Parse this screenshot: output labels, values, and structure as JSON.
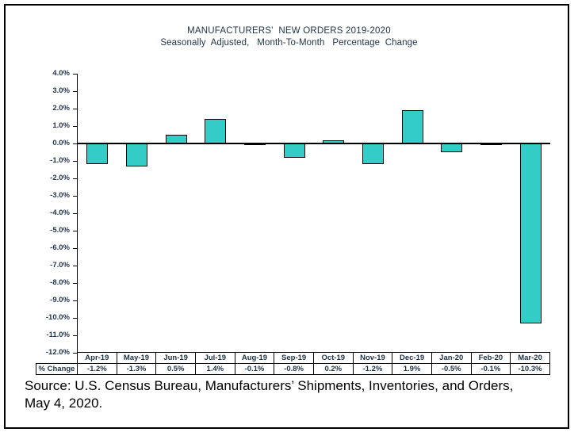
{
  "chart_data": {
    "type": "bar",
    "title": "MANUFACTURERS'  NEW ORDERS 2019-2020",
    "subtitle": "Seasonally  Adjusted,   Month-To-Month   Percentage  Change",
    "categories": [
      "Apr-19",
      "May-19",
      "Jun-19",
      "Jul-19",
      "Aug-19",
      "Sep-19",
      "Oct-19",
      "Nov-19",
      "Dec-19",
      "Jan-20",
      "Feb-20",
      "Mar-20"
    ],
    "values": [
      -1.2,
      -1.3,
      0.5,
      1.4,
      -0.1,
      -0.8,
      0.2,
      -1.2,
      1.9,
      -0.5,
      -0.1,
      -10.3
    ],
    "value_labels": [
      "-1.2%",
      "-1.3%",
      "0.5%",
      "1.4%",
      "-0.1%",
      "-0.8%",
      "0.2%",
      "-1.2%",
      "1.9%",
      "-0.5%",
      "-0.1%",
      "-10.3%"
    ],
    "table_row_label": "% Change",
    "ylabel": "",
    "xlabel": "",
    "ylim": [
      -12.0,
      4.0
    ],
    "ytick_step": 1.0,
    "ytick_labels": [
      "4.0%",
      "3.0%",
      "2.0%",
      "1.0%",
      "0.0%",
      "-1.0%",
      "-2.0%",
      "-3.0%",
      "-4.0%",
      "-5.0%",
      "-6.0%",
      "-7.0%",
      "-8.0%",
      "-9.0%",
      "-10.0%",
      "-11.0%",
      "-12.0%"
    ],
    "grid": false,
    "legend_position": "none",
    "bar_color": "#34CCC7",
    "bar_border_color": "#000000",
    "text_color": "#1F3245"
  },
  "source_note": {
    "line1": "Source: U.S. Census Bureau, Manufacturers’ Shipments, Inventories, and Orders,",
    "line2": "May 4, 2020."
  }
}
